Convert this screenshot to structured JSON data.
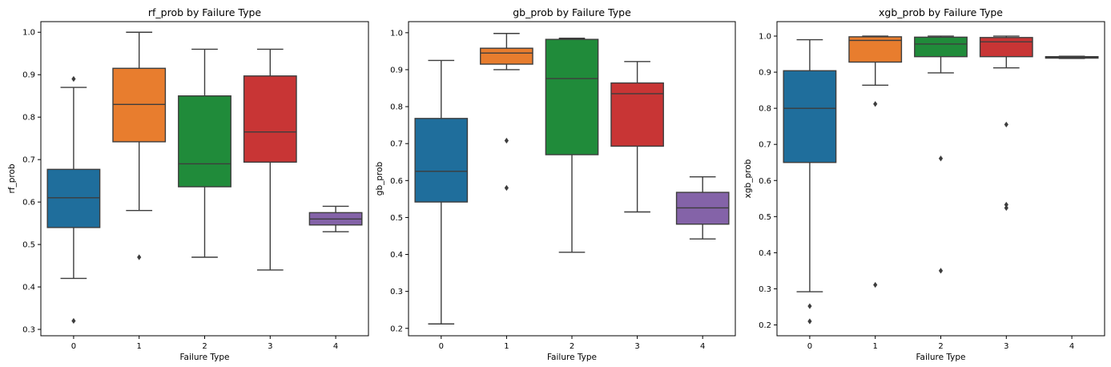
{
  "chart_data": [
    {
      "type": "box",
      "title": "rf_prob by Failure Type",
      "xlabel": "Failure Type",
      "ylabel": "rf_prob",
      "categories": [
        "0",
        "1",
        "2",
        "3",
        "4"
      ],
      "ylim": [
        0.285,
        1.025
      ],
      "yticks": [
        0.3,
        0.4,
        0.5,
        0.6,
        0.7,
        0.8,
        0.9,
        1.0
      ],
      "ytick_labels": [
        "0.3",
        "0.4",
        "0.5",
        "0.6",
        "0.7",
        "0.8",
        "0.9",
        "1.0"
      ],
      "boxes": [
        {
          "q1": 0.54,
          "median": 0.61,
          "q3": 0.677,
          "whisker_low": 0.42,
          "whisker_high": 0.87,
          "outliers": [
            0.89,
            0.32
          ],
          "color": "#1f6e9c"
        },
        {
          "q1": 0.742,
          "median": 0.83,
          "q3": 0.915,
          "whisker_low": 0.58,
          "whisker_high": 1.0,
          "outliers": [
            0.47
          ],
          "color": "#e87d2e"
        },
        {
          "q1": 0.636,
          "median": 0.69,
          "q3": 0.85,
          "whisker_low": 0.47,
          "whisker_high": 0.96,
          "outliers": [],
          "color": "#208b3a"
        },
        {
          "q1": 0.694,
          "median": 0.765,
          "q3": 0.897,
          "whisker_low": 0.44,
          "whisker_high": 0.96,
          "outliers": [],
          "color": "#c83535"
        },
        {
          "q1": 0.546,
          "median": 0.56,
          "q3": 0.575,
          "whisker_low": 0.53,
          "whisker_high": 0.59,
          "outliers": [],
          "color": "#8463a8"
        }
      ]
    },
    {
      "type": "box",
      "title": "gb_prob by Failure Type",
      "xlabel": "Failure Type",
      "ylabel": "gb_prob",
      "categories": [
        "0",
        "1",
        "2",
        "3",
        "4"
      ],
      "ylim": [
        0.18,
        1.03
      ],
      "yticks": [
        0.2,
        0.3,
        0.4,
        0.5,
        0.6,
        0.7,
        0.8,
        0.9,
        1.0
      ],
      "ytick_labels": [
        "0.2",
        "0.3",
        "0.4",
        "0.5",
        "0.6",
        "0.7",
        "0.8",
        "0.9",
        "1.0"
      ],
      "boxes": [
        {
          "q1": 0.542,
          "median": 0.625,
          "q3": 0.768,
          "whisker_low": 0.212,
          "whisker_high": 0.925,
          "outliers": [],
          "color": "#1f6e9c"
        },
        {
          "q1": 0.915,
          "median": 0.945,
          "q3": 0.958,
          "whisker_low": 0.9,
          "whisker_high": 0.998,
          "outliers": [
            0.708,
            0.58
          ],
          "color": "#e87d2e"
        },
        {
          "q1": 0.67,
          "median": 0.876,
          "q3": 0.982,
          "whisker_low": 0.406,
          "whisker_high": 0.985,
          "outliers": [],
          "color": "#208b3a"
        },
        {
          "q1": 0.693,
          "median": 0.835,
          "q3": 0.864,
          "whisker_low": 0.515,
          "whisker_high": 0.922,
          "outliers": [],
          "color": "#c83535"
        },
        {
          "q1": 0.482,
          "median": 0.526,
          "q3": 0.568,
          "whisker_low": 0.442,
          "whisker_high": 0.61,
          "outliers": [],
          "color": "#8463a8"
        }
      ]
    },
    {
      "type": "box",
      "title": "xgb_prob by Failure Type",
      "xlabel": "Failure Type",
      "ylabel": "xgb_prob",
      "categories": [
        "0",
        "1",
        "2",
        "3",
        "4"
      ],
      "ylim": [
        0.17,
        1.04
      ],
      "yticks": [
        0.2,
        0.3,
        0.4,
        0.5,
        0.6,
        0.7,
        0.8,
        0.9,
        1.0
      ],
      "ytick_labels": [
        "0.2",
        "0.3",
        "0.4",
        "0.5",
        "0.6",
        "0.7",
        "0.8",
        "0.9",
        "1.0"
      ],
      "boxes": [
        {
          "q1": 0.65,
          "median": 0.8,
          "q3": 0.904,
          "whisker_low": 0.292,
          "whisker_high": 0.99,
          "outliers": [
            0.252,
            0.21
          ],
          "color": "#1f6e9c"
        },
        {
          "q1": 0.928,
          "median": 0.988,
          "q3": 0.998,
          "whisker_low": 0.864,
          "whisker_high": 1.0,
          "outliers": [
            0.812,
            0.311
          ],
          "color": "#e87d2e"
        },
        {
          "q1": 0.943,
          "median": 0.978,
          "q3": 0.997,
          "whisker_low": 0.898,
          "whisker_high": 1.0,
          "outliers": [
            0.661,
            0.35
          ],
          "color": "#208b3a"
        },
        {
          "q1": 0.943,
          "median": 0.984,
          "q3": 0.996,
          "whisker_low": 0.912,
          "whisker_high": 1.0,
          "outliers": [
            0.755,
            0.533,
            0.524
          ],
          "color": "#c83535"
        },
        {
          "q1": 0.939,
          "median": 0.941,
          "q3": 0.943,
          "whisker_low": 0.938,
          "whisker_high": 0.944,
          "outliers": [],
          "color": "#8463a8"
        }
      ]
    }
  ]
}
